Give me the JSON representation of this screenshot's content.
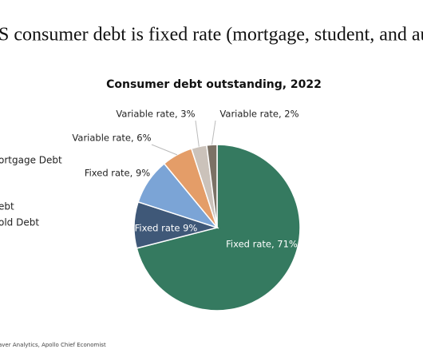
{
  "slide": {
    "heading": "S consumer debt is fixed rate (mortgage, student, and auto loa",
    "legend_texts": [
      "ortgage Debt",
      "ebt",
      "old Debt"
    ],
    "source": "aver Analytics, Apollo Chief Economist"
  },
  "chart_data": {
    "type": "pie",
    "title": "Consumer debt outstanding, 2022",
    "values": [
      71,
      9,
      9,
      6,
      3,
      2
    ],
    "value_labels": [
      "Fixed rate, 71%",
      "Fixed rate  9%",
      "Fixed rate, 9%",
      "Variable rate, 6%",
      "Variable rate, 3%",
      "Variable rate, 2%"
    ],
    "colors": [
      "#357a60",
      "#3f5878",
      "#7ba4d6",
      "#e49d68",
      "#cbc2ba",
      "#7b7165"
    ]
  }
}
